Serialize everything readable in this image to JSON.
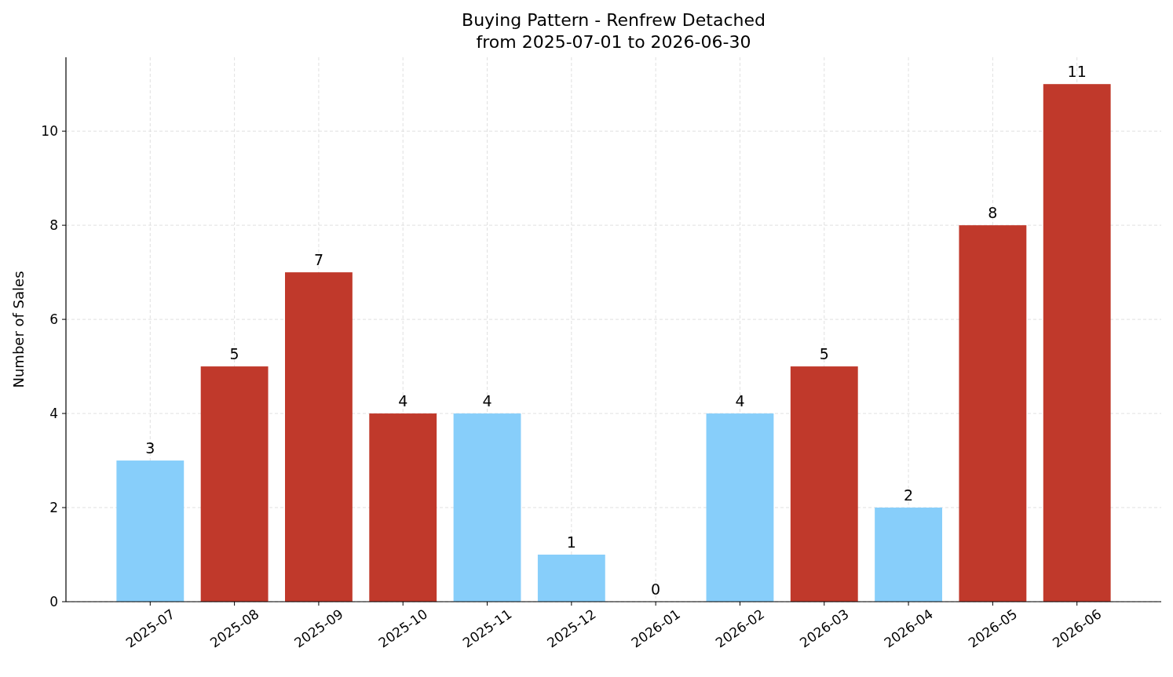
{
  "chart_data": {
    "type": "bar",
    "title": "Buying Pattern - Renfrew Detached",
    "subtitle": "from 2025-07-01 to 2026-06-30",
    "ylabel": "Number of Sales",
    "categories": [
      "2025-07",
      "2025-08",
      "2025-09",
      "2025-10",
      "2025-11",
      "2025-12",
      "2026-01",
      "2026-02",
      "2026-03",
      "2026-04",
      "2026-05",
      "2026-06"
    ],
    "values": [
      3,
      5,
      7,
      4,
      4,
      1,
      0,
      4,
      5,
      2,
      8,
      11
    ],
    "colors": [
      "#87cefa",
      "#c0392b",
      "#c0392b",
      "#c0392b",
      "#87cefa",
      "#87cefa",
      "#87cefa",
      "#87cefa",
      "#c0392b",
      "#87cefa",
      "#c0392b",
      "#c0392b"
    ],
    "ylim": [
      0,
      11.57
    ],
    "yticks": [
      0,
      2,
      4,
      6,
      8,
      10
    ],
    "grid": true,
    "data_labels": true
  }
}
